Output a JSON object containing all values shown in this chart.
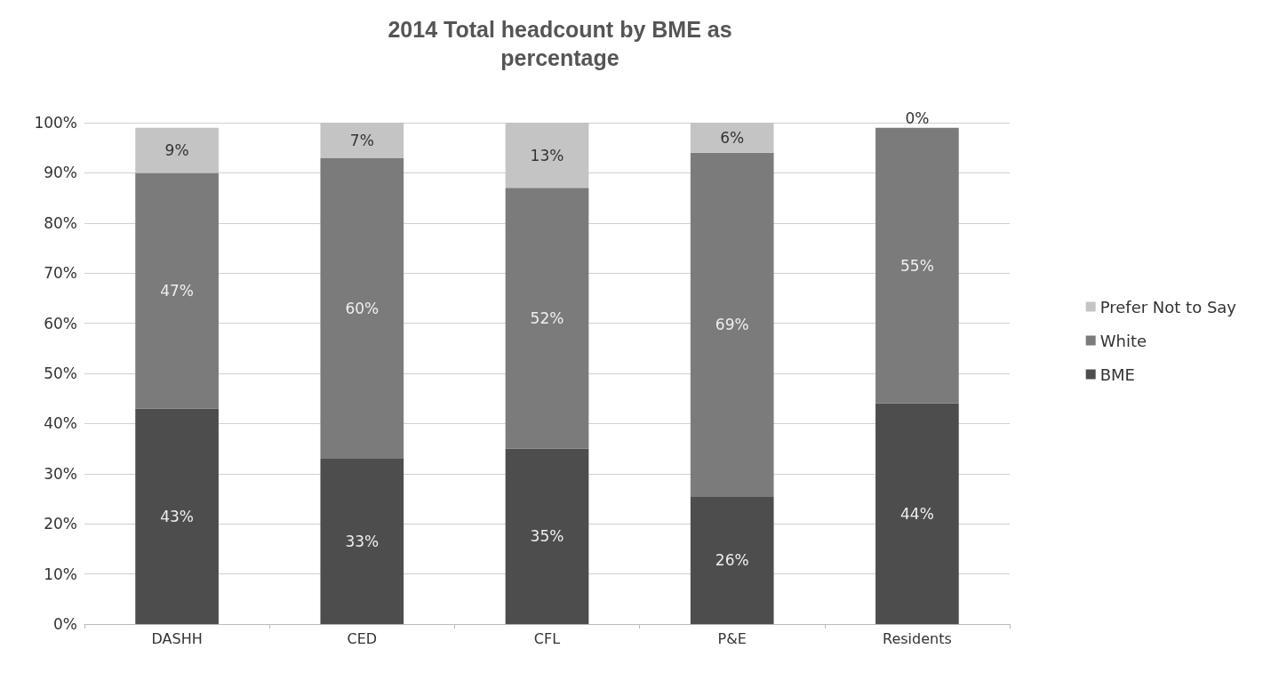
{
  "chart_data": {
    "type": "bar",
    "title": "2014 Total headcount by BME as\npercentage",
    "categories": [
      "DASHH",
      "CED",
      "CFL",
      "P&E",
      "Residents"
    ],
    "stacked": true,
    "series": [
      {
        "name": "BME",
        "color": "#4d4d4d",
        "values": [
          43,
          33,
          35,
          25.5,
          44
        ],
        "value_labels": [
          "43%",
          "33%",
          "35%",
          "26%",
          "44%"
        ]
      },
      {
        "name": "White",
        "color": "#7b7b7b",
        "values": [
          47,
          60,
          52,
          68.5,
          55
        ],
        "value_labels": [
          "47%",
          "60%",
          "52%",
          "69%",
          "55%"
        ]
      },
      {
        "name": "Prefer Not to Say",
        "color": "#c4c4c4",
        "values": [
          9,
          7,
          13,
          6,
          0
        ],
        "value_labels": [
          "9%",
          "7%",
          "13%",
          "6%",
          "0%"
        ]
      }
    ],
    "ylim": [
      0,
      100
    ],
    "yticks": [
      {
        "value": 0,
        "label": "0%"
      },
      {
        "value": 10,
        "label": "10%"
      },
      {
        "value": 20,
        "label": "20%"
      },
      {
        "value": 30,
        "label": "30%"
      },
      {
        "value": 40,
        "label": "40%"
      },
      {
        "value": 50,
        "label": "50%"
      },
      {
        "value": 60,
        "label": "60%"
      },
      {
        "value": 70,
        "label": "70%"
      },
      {
        "value": 80,
        "label": "80%"
      },
      {
        "value": 90,
        "label": "90%"
      },
      {
        "value": 100,
        "label": "100%"
      }
    ],
    "grid": "y",
    "legend": "right"
  }
}
